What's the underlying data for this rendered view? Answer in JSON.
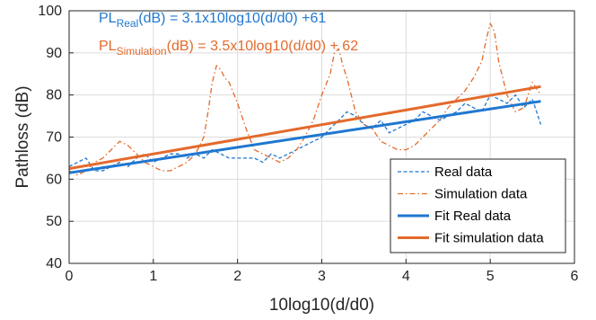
{
  "chart_data": {
    "type": "line",
    "xlabel": "10log10(d/d0)",
    "ylabel": "Pathloss (dB)",
    "xlim": [
      0,
      6
    ],
    "ylim": [
      40,
      100
    ],
    "xticks": [
      0,
      1,
      2,
      3,
      4,
      5,
      6
    ],
    "yticks": [
      40,
      50,
      60,
      70,
      80,
      90,
      100
    ],
    "grid": true,
    "legend_position": "bottom-right",
    "colors": {
      "real": "#1f77d0",
      "simulation": "#e36a2c"
    },
    "annotations": [
      {
        "prefix": "PL",
        "subscript": "Real",
        "text": "(dB) = 3.1x10log10(d/d0) +61",
        "color": "#1f77d0"
      },
      {
        "prefix": "PL",
        "subscript": "Simulation",
        "text": "(dB) = 3.5x10log10(d/d0) + 62",
        "color": "#e36a2c"
      }
    ],
    "series": [
      {
        "name": "Real data",
        "style": "dashed",
        "color": "#1f77d0",
        "x": [
          0.0,
          0.1,
          0.2,
          0.3,
          0.4,
          0.5,
          0.6,
          0.7,
          0.8,
          0.9,
          1.0,
          1.1,
          1.2,
          1.3,
          1.4,
          1.5,
          1.6,
          1.7,
          1.8,
          1.9,
          2.0,
          2.1,
          2.2,
          2.3,
          2.4,
          2.5,
          2.6,
          2.7,
          2.8,
          2.9,
          3.0,
          3.1,
          3.2,
          3.3,
          3.4,
          3.5,
          3.6,
          3.7,
          3.8,
          3.9,
          4.0,
          4.1,
          4.2,
          4.3,
          4.4,
          4.5,
          4.6,
          4.7,
          4.8,
          4.9,
          5.0,
          5.1,
          5.2,
          5.3,
          5.4,
          5.5,
          5.6
        ],
        "y": [
          63,
          64,
          65,
          62,
          62,
          63,
          64,
          63,
          65,
          66,
          64,
          65,
          66,
          66,
          65,
          66,
          65,
          67,
          66,
          65,
          65,
          65,
          65,
          64,
          66,
          65,
          66,
          67,
          68,
          69,
          70,
          72,
          74,
          76,
          75,
          73,
          72,
          74,
          71,
          72,
          73,
          74,
          76,
          75,
          74,
          75,
          76,
          78,
          77,
          76,
          80,
          79,
          78,
          80,
          77,
          79,
          73
        ]
      },
      {
        "name": "Simulation data",
        "style": "dash-dot",
        "color": "#e36a2c",
        "x": [
          0.0,
          0.1,
          0.2,
          0.3,
          0.4,
          0.5,
          0.6,
          0.7,
          0.8,
          0.9,
          1.0,
          1.1,
          1.2,
          1.3,
          1.4,
          1.5,
          1.6,
          1.65,
          1.7,
          1.75,
          1.8,
          1.85,
          1.9,
          2.0,
          2.1,
          2.2,
          2.3,
          2.4,
          2.5,
          2.6,
          2.7,
          2.8,
          2.9,
          3.0,
          3.1,
          3.15,
          3.2,
          3.25,
          3.3,
          3.4,
          3.5,
          3.6,
          3.7,
          3.8,
          3.9,
          4.0,
          4.1,
          4.2,
          4.3,
          4.4,
          4.5,
          4.6,
          4.7,
          4.8,
          4.9,
          4.95,
          5.0,
          5.05,
          5.1,
          5.2,
          5.3,
          5.4,
          5.5,
          5.6
        ],
        "y": [
          62,
          61,
          62,
          64,
          65,
          67,
          69,
          68,
          66,
          64,
          63,
          62,
          62,
          63,
          64,
          66,
          70,
          76,
          83,
          87,
          86,
          84,
          83,
          78,
          72,
          67,
          66,
          65,
          64,
          65,
          67,
          70,
          74,
          80,
          85,
          90,
          91,
          87,
          84,
          76,
          73,
          72,
          69,
          68,
          67,
          67,
          68,
          70,
          72,
          74,
          77,
          79,
          81,
          84,
          88,
          93,
          97,
          95,
          88,
          80,
          76,
          77,
          83,
          80
        ]
      },
      {
        "name": "Fit Real data",
        "style": "solid",
        "color": "#1f77d0",
        "x": [
          0,
          5.6
        ],
        "y": [
          61.5,
          78.5
        ]
      },
      {
        "name": "Fit simulation data",
        "style": "solid",
        "color": "#e36a2c",
        "x": [
          0,
          5.6
        ],
        "y": [
          62.5,
          82
        ]
      }
    ]
  }
}
